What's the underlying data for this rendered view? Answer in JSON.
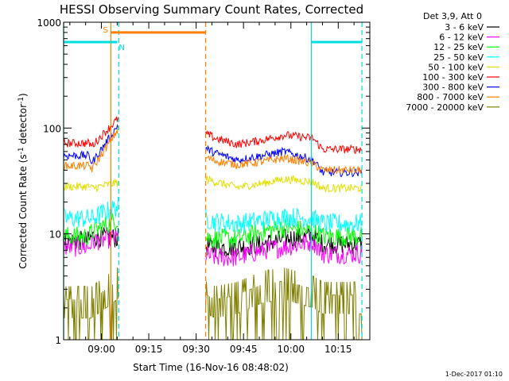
{
  "chart_data": {
    "type": "line",
    "title": "HESSI Observing Summary Count Rates, Corrected",
    "xlabel": "Start Time (16-Nov-16 08:48:02)",
    "ylabel_parts": {
      "pre": "Corrected Count Rate (s",
      "sup1": "-1",
      "mid": " detector",
      "sup2": "-1",
      "post": ")"
    },
    "footer": "1-Dec-2017 01:10",
    "y_scale": "log",
    "ylim": [
      1,
      1000
    ],
    "xlim": [
      "08:48:02",
      "10:25:00"
    ],
    "xticks": [
      "09:00",
      "09:15",
      "09:30",
      "09:45",
      "10:00",
      "10:15"
    ],
    "yticks": [
      "1",
      "10",
      "100",
      "1000"
    ],
    "legend_title": "Det 3,9, Att 0",
    "legend_position": "right",
    "series": [
      {
        "name": "3 - 6 keV",
        "color": "#000000",
        "levels": [
          [
            8,
            8.6
          ],
          [
            9,
            9.5
          ],
          [
            20,
            9.0
          ],
          [
            39,
            8.0
          ],
          [
            48,
            7.5
          ],
          [
            55,
            7.5
          ],
          [
            63,
            8.0
          ],
          [
            70,
            9.0
          ],
          [
            79,
            9.5
          ],
          [
            82,
            8.0
          ]
        ]
      },
      {
        "name": "6 - 12 keV",
        "color": "#ff00ff",
        "levels": [
          [
            8,
            7.5
          ],
          [
            9,
            8.5
          ],
          [
            20,
            9.5
          ],
          [
            39,
            7.0
          ],
          [
            48,
            6.0
          ],
          [
            55,
            6.0
          ],
          [
            63,
            7.0
          ],
          [
            70,
            7.5
          ],
          [
            79,
            8.5
          ],
          [
            82,
            6.5
          ]
        ]
      },
      {
        "name": "12 - 25 keV",
        "color": "#00ff00",
        "levels": [
          [
            8,
            9.5
          ],
          [
            9,
            10.5
          ],
          [
            20,
            15
          ],
          [
            39,
            10.0
          ],
          [
            48,
            9.0
          ],
          [
            55,
            9.0
          ],
          [
            63,
            10.5
          ],
          [
            70,
            11.5
          ],
          [
            79,
            10.5
          ],
          [
            82,
            9.5
          ]
        ]
      },
      {
        "name": "25 - 50 keV",
        "color": "#00ffff",
        "levels": [
          [
            8,
            14
          ],
          [
            9,
            14
          ],
          [
            20,
            20
          ],
          [
            39,
            16
          ],
          [
            48,
            13
          ],
          [
            55,
            12.5
          ],
          [
            63,
            13.5
          ],
          [
            70,
            14.5
          ],
          [
            79,
            14
          ],
          [
            82,
            12.5
          ]
        ]
      },
      {
        "name": "50 - 100 keV",
        "color": "#e0e000",
        "levels": [
          [
            8,
            28
          ],
          [
            9,
            27
          ],
          [
            20,
            32
          ],
          [
            39,
            38
          ],
          [
            48,
            31
          ],
          [
            55,
            27.5
          ],
          [
            63,
            30
          ],
          [
            70,
            33
          ],
          [
            79,
            31
          ],
          [
            82,
            27
          ]
        ]
      },
      {
        "name": "100 - 300 keV",
        "color": "#ff0000",
        "levels": [
          [
            8,
            72
          ],
          [
            9,
            68
          ],
          [
            20,
            150
          ],
          [
            39,
            108
          ],
          [
            48,
            80
          ],
          [
            55,
            70
          ],
          [
            63,
            77
          ],
          [
            70,
            86
          ],
          [
            79,
            80
          ],
          [
            82,
            63
          ]
        ]
      },
      {
        "name": "300 - 800 keV",
        "color": "#0000ff",
        "levels": [
          [
            8,
            55
          ],
          [
            9,
            47
          ],
          [
            20,
            140
          ],
          [
            39,
            78
          ],
          [
            48,
            58
          ],
          [
            55,
            50
          ],
          [
            63,
            55
          ],
          [
            70,
            60
          ],
          [
            79,
            50
          ],
          [
            82,
            38
          ]
        ]
      },
      {
        "name": "800 - 7000 keV",
        "color": "#ff7f00",
        "levels": [
          [
            8,
            44
          ],
          [
            9,
            41
          ],
          [
            20,
            130
          ],
          [
            39,
            62
          ],
          [
            48,
            49
          ],
          [
            55,
            45
          ],
          [
            63,
            48
          ],
          [
            70,
            52
          ],
          [
            79,
            46
          ],
          [
            82,
            40
          ]
        ]
      },
      {
        "name": "7000 - 20000 keV",
        "color": "#808000",
        "levels": [
          [
            8,
            2.0
          ],
          [
            9,
            2.0
          ],
          [
            20,
            3.5
          ],
          [
            39,
            2.8
          ],
          [
            48,
            2.0
          ],
          [
            55,
            2.2
          ],
          [
            63,
            2.8
          ],
          [
            70,
            3.0
          ],
          [
            79,
            2.5
          ],
          [
            82,
            2.2
          ]
        ]
      }
    ],
    "data_segments": [
      {
        "start": "08:48:02",
        "end": "09:05:30"
      },
      {
        "start": "09:33:00",
        "end": "10:22:30"
      }
    ],
    "annotations": [
      {
        "text": "S",
        "color": "#ff7f00",
        "span": [
          "09:03:00",
          "09:33:00"
        ],
        "level": 800
      },
      {
        "text": "N",
        "color": "#00dddd",
        "span": [
          "08:48:02",
          "09:05:00"
        ],
        "level": 650
      },
      {
        "text": "",
        "color": "#00dddd",
        "span": [
          "10:06:30",
          "10:22:30"
        ],
        "level": 650
      }
    ],
    "vertical_lines": [
      {
        "time": "08:48:02",
        "color": "#00dddd",
        "style": "solid"
      },
      {
        "time": "09:03:00",
        "color": "#ff7f00",
        "style": "solid"
      },
      {
        "time": "09:05:30",
        "color": "#00dddd",
        "style": "dashed"
      },
      {
        "time": "09:33:00",
        "color": "#ff7f00",
        "style": "dashed"
      },
      {
        "time": "10:06:30",
        "color": "#00dddd",
        "style": "solid"
      },
      {
        "time": "10:22:30",
        "color": "#00dddd",
        "style": "dashed"
      }
    ]
  }
}
